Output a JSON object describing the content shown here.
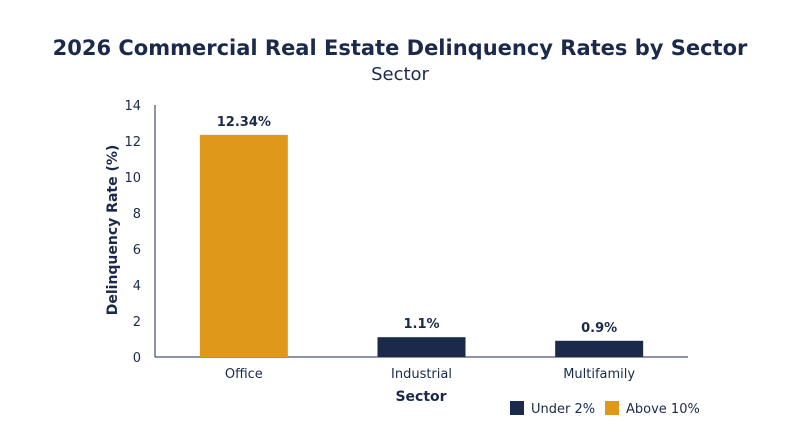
{
  "chart_data": {
    "type": "bar",
    "title": "2026 Commercial Real Estate Delinquency Rates by Sector",
    "subtitle": "Sector",
    "xlabel": "Sector",
    "ylabel": "Delinquency Rate (%)",
    "ylim": [
      0,
      14
    ],
    "yticks": [
      0,
      2,
      4,
      6,
      8,
      10,
      12,
      14
    ],
    "categories": [
      "Office",
      "Industrial",
      "Multifamily"
    ],
    "values": [
      12.34,
      1.1,
      0.9
    ],
    "data_labels": [
      "12.34%",
      "1.1%",
      "0.9%"
    ],
    "bar_group": [
      "above",
      "under",
      "under"
    ],
    "grid": false,
    "legend": {
      "placement": "bottom-right",
      "items": [
        {
          "key": "under",
          "label": "Under 2%",
          "color": "#1b2a4a"
        },
        {
          "key": "above",
          "label": "Above 10%",
          "color": "#e0981a"
        }
      ]
    }
  }
}
